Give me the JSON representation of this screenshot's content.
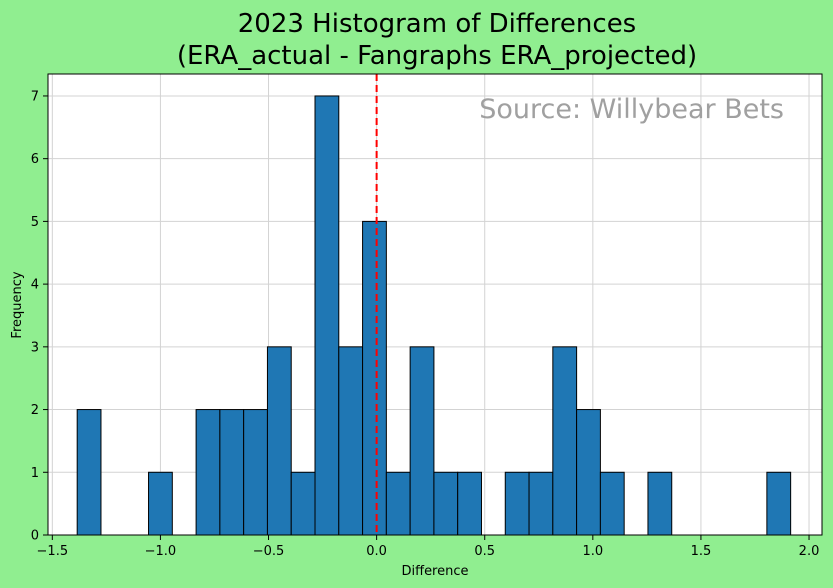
{
  "chart_data": {
    "type": "bar",
    "title": [
      "2023 Histogram of Differences",
      "(ERA_actual - Fangraphs ERA_projected)"
    ],
    "xlabel": "Difference",
    "ylabel": "Frequency",
    "watermark": "Source: Willybear Bets",
    "xlim": [
      -1.52,
      2.06
    ],
    "ylim": [
      0,
      7.35
    ],
    "xticks": [
      -1.5,
      -1.0,
      -0.5,
      0.0,
      0.5,
      1.0,
      1.5,
      2.0
    ],
    "xtick_labels": [
      "−1.5",
      "−1.0",
      "−0.5",
      "0.0",
      "0.5",
      "1.0",
      "1.5",
      "2.0"
    ],
    "yticks": [
      0,
      1,
      2,
      3,
      4,
      5,
      6,
      7
    ],
    "ytick_labels": [
      "0",
      "1",
      "2",
      "3",
      "4",
      "5",
      "6",
      "7"
    ],
    "grid": true,
    "reference_line": {
      "x": 0.0,
      "color": "#ff0000",
      "style": "dashed"
    },
    "bins": [
      {
        "start": -1.385,
        "end": -1.275,
        "count": 2
      },
      {
        "start": -1.275,
        "end": -1.165,
        "count": 0
      },
      {
        "start": -1.165,
        "end": -1.055,
        "count": 0
      },
      {
        "start": -1.055,
        "end": -0.945,
        "count": 1
      },
      {
        "start": -0.945,
        "end": -0.835,
        "count": 0
      },
      {
        "start": -0.835,
        "end": -0.725,
        "count": 2
      },
      {
        "start": -0.725,
        "end": -0.615,
        "count": 2
      },
      {
        "start": -0.615,
        "end": -0.505,
        "count": 2
      },
      {
        "start": -0.505,
        "end": -0.395,
        "count": 3
      },
      {
        "start": -0.395,
        "end": -0.285,
        "count": 1
      },
      {
        "start": -0.285,
        "end": -0.175,
        "count": 7
      },
      {
        "start": -0.175,
        "end": -0.065,
        "count": 3
      },
      {
        "start": -0.065,
        "end": 0.045,
        "count": 5
      },
      {
        "start": 0.045,
        "end": 0.155,
        "count": 1
      },
      {
        "start": 0.155,
        "end": 0.265,
        "count": 3
      },
      {
        "start": 0.265,
        "end": 0.375,
        "count": 1
      },
      {
        "start": 0.375,
        "end": 0.485,
        "count": 1
      },
      {
        "start": 0.485,
        "end": 0.595,
        "count": 0
      },
      {
        "start": 0.595,
        "end": 0.705,
        "count": 1
      },
      {
        "start": 0.705,
        "end": 0.815,
        "count": 1
      },
      {
        "start": 0.815,
        "end": 0.925,
        "count": 3
      },
      {
        "start": 0.925,
        "end": 1.035,
        "count": 2
      },
      {
        "start": 1.035,
        "end": 1.145,
        "count": 1
      },
      {
        "start": 1.145,
        "end": 1.255,
        "count": 0
      },
      {
        "start": 1.255,
        "end": 1.365,
        "count": 1
      },
      {
        "start": 1.365,
        "end": 1.475,
        "count": 0
      },
      {
        "start": 1.475,
        "end": 1.585,
        "count": 0
      },
      {
        "start": 1.585,
        "end": 1.695,
        "count": 0
      },
      {
        "start": 1.695,
        "end": 1.805,
        "count": 0
      },
      {
        "start": 1.805,
        "end": 1.915,
        "count": 1
      }
    ],
    "colors": {
      "bar_fill": "#1f77b4",
      "bar_edge": "#000000",
      "grid": "#d3d3d3",
      "background": "#90ee90",
      "plot_background": "#ffffff"
    }
  }
}
